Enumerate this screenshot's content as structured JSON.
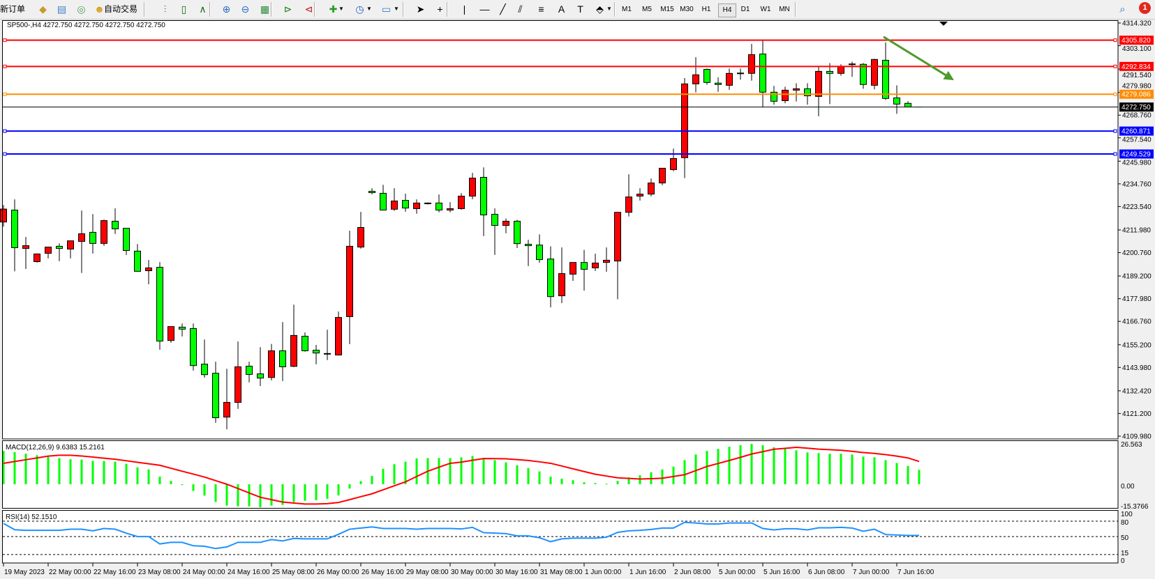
{
  "toolbar": {
    "new_order_label": "新订单",
    "auto_trading_label": "自动交易",
    "icons": [
      {
        "name": "market-watch-icon",
        "glyph": "◆",
        "color": "#c89a2a"
      },
      {
        "name": "data-window-icon",
        "glyph": "▤",
        "color": "#3a7cc8"
      },
      {
        "name": "signal-icon",
        "glyph": "◎",
        "color": "#5a9a5a"
      },
      {
        "name": "expert-advisor-icon",
        "glyph": "☻",
        "color": "#d8a020"
      },
      {
        "name": "bar-chart-icon",
        "glyph": "⫶",
        "color": "#1a6a1a"
      },
      {
        "name": "candlestick-chart-icon",
        "glyph": "▯",
        "color": "#1a6a1a"
      },
      {
        "name": "line-chart-icon",
        "glyph": "∧",
        "color": "#1a6a1a"
      },
      {
        "name": "zoom-in-icon",
        "glyph": "⊕",
        "color": "#2a70c0"
      },
      {
        "name": "zoom-out-icon",
        "glyph": "⊖",
        "color": "#2a70c0"
      },
      {
        "name": "tile-windows-icon",
        "glyph": "▦",
        "color": "#2a8a3a"
      },
      {
        "name": "auto-scroll-icon",
        "glyph": "⊳",
        "color": "#1a8a1a"
      },
      {
        "name": "chart-shift-icon",
        "glyph": "⊲",
        "color": "#c02020"
      },
      {
        "name": "indicators-icon",
        "glyph": "✚",
        "color": "#20a020"
      },
      {
        "name": "periods-icon",
        "glyph": "◷",
        "color": "#2060c0"
      },
      {
        "name": "templates-icon",
        "glyph": "▭",
        "color": "#3a7cc8"
      },
      {
        "name": "cursor-icon",
        "glyph": "➤",
        "color": "#000000"
      },
      {
        "name": "crosshair-icon",
        "glyph": "+",
        "color": "#000000"
      },
      {
        "name": "vertical-line-icon",
        "glyph": "|",
        "color": "#000000"
      },
      {
        "name": "horizontal-line-icon",
        "glyph": "—",
        "color": "#000000"
      },
      {
        "name": "trendline-icon",
        "glyph": "╱",
        "color": "#000000"
      },
      {
        "name": "equidistant-channel-icon",
        "glyph": "⫽",
        "color": "#000000"
      },
      {
        "name": "fibonacci-icon",
        "glyph": "≡",
        "color": "#000000"
      },
      {
        "name": "text-icon",
        "glyph": "A",
        "color": "#000000"
      },
      {
        "name": "text-label-icon",
        "glyph": "T",
        "color": "#000000"
      },
      {
        "name": "arrows-icon",
        "glyph": "⬘",
        "color": "#000000"
      }
    ],
    "timeframes": [
      "M1",
      "M5",
      "M15",
      "M30",
      "H1",
      "H4",
      "D1",
      "W1",
      "MN"
    ],
    "active_timeframe": "H4",
    "search_icon": "search-icon",
    "notification_count": "1"
  },
  "chart": {
    "symbol_header": "SP500-,H4  4272.750 4272.750 4272.750 4272.750",
    "macd_label": "MACD(12,26,9) 9.6383 15.2161",
    "rsi_label": "RSI(14) 52.1510"
  },
  "chart_data": {
    "type": "candlestick",
    "ylim": [
      4109.98,
      4314.32
    ],
    "price_ticks": [
      "4314.320",
      "4303.100",
      "4291.540",
      "4279.980",
      "4268.760",
      "4257.540",
      "4245.980",
      "4234.760",
      "4223.540",
      "4211.980",
      "4200.760",
      "4189.200",
      "4177.980",
      "4166.760",
      "4155.200",
      "4143.980",
      "4132.420",
      "4121.200",
      "4109.980"
    ],
    "time_labels": [
      "19 May 2023",
      "22 May 00:00",
      "22 May 16:00",
      "23 May 08:00",
      "24 May 00:00",
      "24 May 16:00",
      "25 May 08:00",
      "26 May 00:00",
      "26 May 16:00",
      "29 May 08:00",
      "30 May 00:00",
      "30 May 16:00",
      "31 May 08:00",
      "1 Jun 00:00",
      "1 Jun 16:00",
      "2 Jun 08:00",
      "5 Jun 00:00",
      "5 Jun 16:00",
      "6 Jun 08:00",
      "7 Jun 00:00",
      "7 Jun 16:00"
    ],
    "bars_per_time_label": 4,
    "ohlc": [
      [
        4215.9,
        4224.3,
        4213.6,
        4222.3
      ],
      [
        4221.8,
        4227.1,
        4191.5,
        4203.2
      ],
      [
        4202.8,
        4208.5,
        4192.7,
        4204.2
      ],
      [
        4196.3,
        4200.4,
        4195.8,
        4200.1
      ],
      [
        4200.4,
        4203.5,
        4197.9,
        4203.5
      ],
      [
        4203.9,
        4205.3,
        4196.5,
        4202.8
      ],
      [
        4202.5,
        4206.6,
        4197.9,
        4206.6
      ],
      [
        4206.3,
        4221.6,
        4190.7,
        4210.1
      ],
      [
        4210.8,
        4219.8,
        4200.3,
        4205.3
      ],
      [
        4205.3,
        4217.1,
        4204.1,
        4216.6
      ],
      [
        4216.3,
        4222.6,
        4210.0,
        4212.5
      ],
      [
        4212.8,
        4212.8,
        4199.6,
        4201.8
      ],
      [
        4201.5,
        4205.0,
        4191.5,
        4191.5
      ],
      [
        4191.8,
        4197.1,
        4185.1,
        4193.2
      ],
      [
        4193.5,
        4196.1,
        4152.7,
        4157.0
      ],
      [
        4157.3,
        4164.2,
        4156.2,
        4164.2
      ],
      [
        4163.9,
        4165.7,
        4159.3,
        4162.9
      ],
      [
        4163.2,
        4165.7,
        4142.4,
        4144.9
      ],
      [
        4145.6,
        4157.8,
        4138.9,
        4140.4
      ],
      [
        4141.1,
        4146.8,
        4116.6,
        4119.1
      ],
      [
        4119.4,
        4143.3,
        4113.4,
        4126.7
      ],
      [
        4126.7,
        4156.8,
        4123.5,
        4144.3
      ],
      [
        4144.6,
        4146.8,
        4136.6,
        4140.5
      ],
      [
        4140.8,
        4154.0,
        4134.8,
        4138.7
      ],
      [
        4139.0,
        4155.6,
        4137.6,
        4152.2
      ],
      [
        4152.2,
        4166.4,
        4137.2,
        4144.3
      ],
      [
        4144.5,
        4175.0,
        4144.1,
        4159.8
      ],
      [
        4159.4,
        4161.3,
        4151.8,
        4152.2
      ],
      [
        4152.5,
        4155.1,
        4145.5,
        4151.1
      ],
      [
        4150.7,
        4162.6,
        4147.6,
        4150.7
      ],
      [
        4150.1,
        4171.6,
        4150.1,
        4168.7
      ],
      [
        4169.1,
        4211.6,
        4155.5,
        4203.9
      ],
      [
        4203.5,
        4220.9,
        4202.7,
        4213.2
      ],
      [
        4231.1,
        4232.6,
        4229.6,
        4230.4
      ],
      [
        4230.1,
        4234.3,
        4221.8,
        4221.8
      ],
      [
        4222.2,
        4232.6,
        4221.4,
        4226.3
      ],
      [
        4226.6,
        4229.9,
        4221.0,
        4222.8
      ],
      [
        4222.5,
        4227.1,
        4220.0,
        4225.3
      ],
      [
        4225.1,
        4225.6,
        4224.6,
        4225.1
      ],
      [
        4225.3,
        4229.5,
        4220.7,
        4221.8
      ],
      [
        4221.8,
        4225.7,
        4220.7,
        4222.5
      ],
      [
        4222.5,
        4230.2,
        4222.0,
        4228.7
      ],
      [
        4228.7,
        4240.2,
        4227.2,
        4237.6
      ],
      [
        4238.0,
        4242.9,
        4208.9,
        4219.4
      ],
      [
        4219.7,
        4222.6,
        4199.6,
        4214.2
      ],
      [
        4214.2,
        4217.6,
        4210.3,
        4216.3
      ],
      [
        4216.3,
        4217.0,
        4203.0,
        4205.2
      ],
      [
        4204.9,
        4207.1,
        4194.1,
        4204.2
      ],
      [
        4204.5,
        4209.8,
        4195.8,
        4197.3
      ],
      [
        4197.6,
        4203.9,
        4173.7,
        4179.0
      ],
      [
        4179.4,
        4203.3,
        4175.8,
        4190.4
      ],
      [
        4190.1,
        4195.9,
        4186.8,
        4195.9
      ],
      [
        4195.9,
        4202.1,
        4182.0,
        4192.5
      ],
      [
        4193.2,
        4200.2,
        4191.7,
        4195.6
      ],
      [
        4195.9,
        4203.3,
        4191.3,
        4197.0
      ],
      [
        4196.6,
        4220.7,
        4177.7,
        4220.7
      ],
      [
        4220.7,
        4239.5,
        4218.6,
        4228.3
      ],
      [
        4228.7,
        4232.6,
        4226.5,
        4229.7
      ],
      [
        4229.7,
        4237.4,
        4228.6,
        4235.2
      ],
      [
        4235.2,
        4242.5,
        4234.1,
        4242.5
      ],
      [
        4241.8,
        4252.2,
        4241.0,
        4247.3
      ],
      [
        4247.7,
        4287.1,
        4237.6,
        4284.2
      ],
      [
        4284.2,
        4297.4,
        4280.0,
        4288.7
      ],
      [
        4291.4,
        4291.8,
        4283.8,
        4284.9
      ],
      [
        4284.6,
        4287.4,
        4280.3,
        4283.9
      ],
      [
        4283.5,
        4291.8,
        4281.3,
        4289.4
      ],
      [
        4289.4,
        4291.8,
        4286.3,
        4289.4
      ],
      [
        4289.4,
        4304.0,
        4285.8,
        4298.7
      ],
      [
        4299.0,
        4305.7,
        4272.8,
        4280.1
      ],
      [
        4280.1,
        4283.2,
        4273.9,
        4275.6
      ],
      [
        4275.9,
        4282.8,
        4274.6,
        4281.1
      ],
      [
        4281.1,
        4284.5,
        4275.5,
        4281.8
      ],
      [
        4281.8,
        4284.5,
        4273.9,
        4278.3
      ],
      [
        4278.0,
        4292.8,
        4268.2,
        4290.4
      ],
      [
        4290.4,
        4294.5,
        4274.2,
        4289.4
      ],
      [
        4289.4,
        4293.9,
        4288.3,
        4292.8
      ],
      [
        4293.9,
        4295.2,
        4287.7,
        4293.9
      ],
      [
        4293.9,
        4294.5,
        4281.8,
        4283.9
      ],
      [
        4283.5,
        4296.6,
        4281.5,
        4296.3
      ],
      [
        4295.9,
        4304.7,
        4276.3,
        4277.0
      ],
      [
        4277.3,
        4283.5,
        4269.4,
        4274.2
      ],
      [
        4274.6,
        4275.6,
        4272.8,
        4272.8
      ],
      [
        4272.75,
        4272.75,
        4272.75,
        4272.75
      ]
    ],
    "current_price": {
      "value": 4272.75,
      "label": "4272.750",
      "color": "#000000"
    },
    "levels": [
      {
        "value": 4305.82,
        "label": "4305.820",
        "color": "#ff0000"
      },
      {
        "value": 4292.834,
        "label": "4292.834",
        "color": "#ff0000"
      },
      {
        "value": 4279.086,
        "label": "4279.086",
        "color": "#ff8c00"
      },
      {
        "value": 4260.871,
        "label": "4260.871",
        "color": "#0000ff"
      },
      {
        "value": 4249.529,
        "label": "4249.529",
        "color": "#0000ff"
      }
    ],
    "up_color": "#ff0000",
    "down_color": "#00ff00",
    "arrow": {
      "from": [
        79,
        4307.5
      ],
      "to": [
        85,
        4286.0
      ],
      "color": "#4f9a2c"
    },
    "macd": {
      "ylim": [
        -15.3766,
        26.563
      ],
      "ticks": [
        "26.563",
        "0.00",
        "-15.3766"
      ],
      "histogram_color": "#00ff00",
      "signal_color": "#ff0000",
      "histogram": [
        22.3,
        21.5,
        20.4,
        19.4,
        18.3,
        17.5,
        16.7,
        16.5,
        15.6,
        15.6,
        15.1,
        13.7,
        11.3,
        9.9,
        5.1,
        2.2,
        -0.5,
        -4.5,
        -7.6,
        -11.9,
        -14.3,
        -14.8,
        -14.8,
        -15.4,
        -14.3,
        -13.8,
        -11.9,
        -11.1,
        -10.7,
        -9.7,
        -7.5,
        -2.9,
        2.1,
        5.6,
        10.3,
        13.4,
        15.1,
        17.3,
        17.5,
        17.5,
        17.5,
        18.0,
        18.9,
        17.0,
        16.1,
        14.6,
        12.7,
        10.8,
        8.6,
        5.1,
        3.7,
        2.7,
        1.3,
        0.8,
        0.3,
        2.2,
        4.6,
        6.0,
        8.0,
        9.9,
        11.8,
        16.1,
        19.9,
        22.3,
        23.7,
        25.1,
        26.1,
        27.0,
        26.1,
        24.7,
        23.7,
        22.7,
        21.3,
        20.8,
        20.4,
        20.4,
        19.9,
        18.5,
        18.0,
        16.1,
        14.2,
        12.2,
        9.6383
      ],
      "signal": [
        14.0,
        15.2,
        16.4,
        17.6,
        18.8,
        19.4,
        19.4,
        18.9,
        18.2,
        17.4,
        16.7,
        15.7,
        14.7,
        13.7,
        12.7,
        10.7,
        8.7,
        6.8,
        4.8,
        2.4,
        0.0,
        -2.9,
        -5.8,
        -8.7,
        -10.3,
        -11.9,
        -12.6,
        -13.2,
        -13.2,
        -13.0,
        -12.2,
        -10.3,
        -8.3,
        -6.4,
        -3.7,
        -1.0,
        1.6,
        5.2,
        8.7,
        11.4,
        14.0,
        14.8,
        16.0,
        17.2,
        17.1,
        17.0,
        16.5,
        15.9,
        15.0,
        14.0,
        12.2,
        10.3,
        8.5,
        6.7,
        5.5,
        4.3,
        3.9,
        3.5,
        3.7,
        4.0,
        5.2,
        6.4,
        9.1,
        11.9,
        13.9,
        15.9,
        18.0,
        20.2,
        21.8,
        23.4,
        24.0,
        24.7,
        24.1,
        23.5,
        23.1,
        22.7,
        22.0,
        21.2,
        20.6,
        19.8,
        18.8,
        17.6,
        15.2161
      ]
    },
    "rsi": {
      "levels": [
        80,
        50,
        15
      ],
      "ticks": [
        "100",
        "80",
        "50",
        "15",
        "0"
      ],
      "color": "#1e90ff",
      "values": [
        75.5,
        63.4,
        62.1,
        62.1,
        62.1,
        62.1,
        64.3,
        64.3,
        61.2,
        65.7,
        64.3,
        56.7,
        50,
        50,
        35.7,
        38.8,
        38.8,
        32.1,
        31.2,
        26.7,
        29.8,
        38.8,
        38.8,
        38.8,
        44.2,
        41.5,
        46.4,
        45.5,
        45.5,
        45.5,
        54.5,
        64.3,
        66.6,
        68.8,
        65.7,
        65.7,
        65.7,
        64.3,
        65.7,
        65.7,
        65.7,
        64.8,
        67.9,
        57.6,
        56.7,
        55.8,
        51.3,
        51.3,
        47.8,
        40.1,
        45.5,
        46.9,
        46.9,
        46.9,
        48.7,
        58.1,
        61.2,
        62.1,
        63.9,
        66.6,
        66.6,
        77.8,
        76.4,
        74.6,
        74.6,
        76.4,
        76.4,
        76.4,
        65.7,
        63,
        65.2,
        65.2,
        63,
        67,
        67,
        67.9,
        66.6,
        60.3,
        64.3,
        54,
        53.1,
        52.2,
        52.151
      ]
    }
  }
}
